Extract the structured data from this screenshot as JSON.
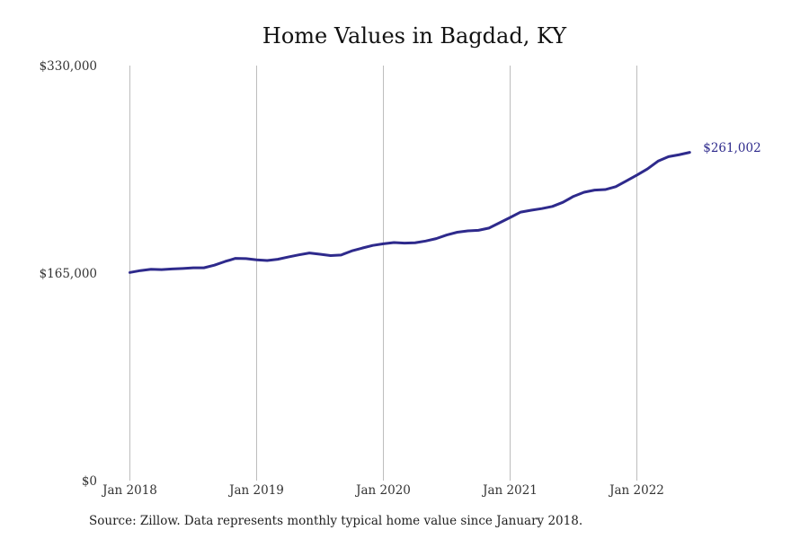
{
  "chart_data": {
    "type": "line",
    "title": "Home Values in Bagdad, KY",
    "source": "Source: Zillow. Data represents monthly typical home value since January 2018.",
    "ylim": [
      0,
      330000
    ],
    "y_ticks": [
      {
        "value": 0,
        "label": "$0"
      },
      {
        "value": 165000,
        "label": "$165,000"
      },
      {
        "value": 330000,
        "label": "$330,000"
      }
    ],
    "x_ticks": [
      {
        "value": 0,
        "label": "Jan 2018"
      },
      {
        "value": 12,
        "label": "Jan 2019"
      },
      {
        "value": 24,
        "label": "Jan 2020"
      },
      {
        "value": 36,
        "label": "Jan 2021"
      },
      {
        "value": 48,
        "label": "Jan 2022"
      }
    ],
    "grid": "vertical",
    "line_color": "#2e2a8c",
    "end_label": "$261,002",
    "series": [
      {
        "values": [
          165500,
          167000,
          168000,
          167800,
          168300,
          168700,
          169200,
          169200,
          171300,
          174200,
          176700,
          176500,
          175500,
          175000,
          176000,
          177800,
          179500,
          181000,
          180000,
          178900,
          179400,
          182600,
          184900,
          187000,
          188300,
          189300,
          188800,
          189100,
          190500,
          192400,
          195300,
          197500,
          198600,
          199000,
          200800,
          205000,
          209200,
          213500,
          215000,
          216300,
          218000,
          221300,
          226000,
          229300,
          231000,
          231400,
          233700,
          238300,
          242900,
          247800,
          254000,
          257600,
          259100,
          261002
        ]
      }
    ]
  }
}
